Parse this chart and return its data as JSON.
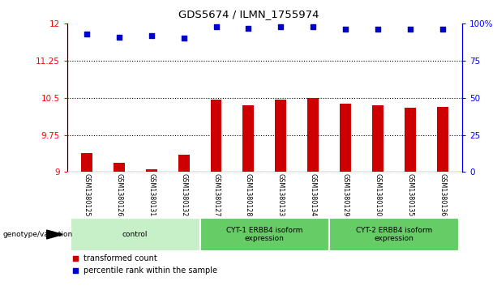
{
  "title": "GDS5674 / ILMN_1755974",
  "samples": [
    "GSM1380125",
    "GSM1380126",
    "GSM1380131",
    "GSM1380132",
    "GSM1380127",
    "GSM1380128",
    "GSM1380133",
    "GSM1380134",
    "GSM1380129",
    "GSM1380130",
    "GSM1380135",
    "GSM1380136"
  ],
  "transformed_count": [
    9.38,
    9.18,
    9.06,
    9.35,
    10.46,
    10.34,
    10.46,
    10.49,
    10.38,
    10.34,
    10.3,
    10.32
  ],
  "percentile_rank": [
    93,
    91,
    92,
    90,
    98,
    97,
    98,
    98,
    96,
    96,
    96,
    96
  ],
  "ylim_left": [
    9.0,
    12.0
  ],
  "ylim_right": [
    0,
    100
  ],
  "yticks_left": [
    9.0,
    9.75,
    10.5,
    11.25,
    12.0
  ],
  "ytick_labels_left": [
    "9",
    "9.75",
    "10.5",
    "11.25",
    "12"
  ],
  "yticks_right": [
    0,
    25,
    50,
    75,
    100
  ],
  "ytick_labels_right": [
    "0",
    "25",
    "50",
    "75",
    "100%"
  ],
  "hlines": [
    9.75,
    10.5,
    11.25
  ],
  "bar_color": "#cc0000",
  "dot_color": "#0000cc",
  "bar_width": 0.35,
  "control_bg": "#d3d3d3",
  "group_colors": [
    "#c8f0c8",
    "#66cc66",
    "#66cc66"
  ],
  "group_ranges": [
    [
      0,
      3
    ],
    [
      4,
      7
    ],
    [
      8,
      11
    ]
  ],
  "group_labels": [
    "control",
    "CYT-1 ERBB4 isoform\nexpression",
    "CYT-2 ERBB4 isoform\nexpression"
  ],
  "genotype_label": "genotype/variation",
  "legend_items": [
    {
      "color": "#cc0000",
      "label": "transformed count"
    },
    {
      "color": "#0000cc",
      "label": "percentile rank within the sample"
    }
  ],
  "sample_bg": "#c8c8c8",
  "plot_bg": "#ffffff"
}
